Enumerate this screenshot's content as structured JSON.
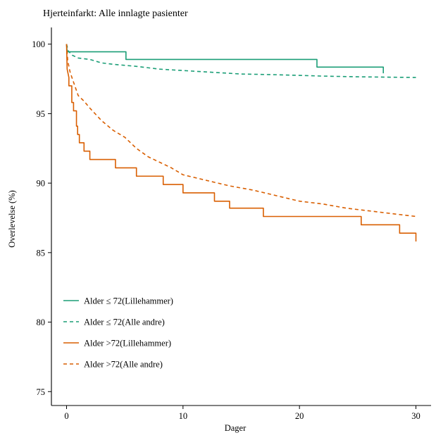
{
  "chart_data": {
    "type": "line",
    "title": "Hjerteinfarkt: Alle innlagte pasienter",
    "xlabel": "Dager",
    "ylabel": "Overlevelse (%)",
    "xlim": [
      -1.3,
      31.3
    ],
    "ylim": [
      74,
      101.2
    ],
    "x_ticks": [
      0,
      10,
      20,
      30
    ],
    "x_tick_labels": [
      "0",
      "10",
      "20",
      "30"
    ],
    "y_ticks": [
      75,
      80,
      85,
      90,
      95,
      100
    ],
    "y_tick_labels": [
      "75",
      "80",
      "85",
      "90",
      "95",
      "100"
    ],
    "grid": false,
    "legend_position": "bottom-left",
    "series": [
      {
        "name": "Alder ≤ 72(Lillehammer)",
        "color": "#1b9e77",
        "dash": "solid",
        "step": true,
        "points": [
          [
            0,
            100
          ],
          [
            0.05,
            99.45
          ],
          [
            5.1,
            99.45
          ],
          [
            5.1,
            98.9
          ],
          [
            21.5,
            98.9
          ],
          [
            21.5,
            98.35
          ],
          [
            27.2,
            98.35
          ],
          [
            27.2,
            97.9
          ]
        ]
      },
      {
        "name": "Alder ≤ 72(Alle andre)",
        "color": "#1b9e77",
        "dash": "dashed",
        "step": false,
        "points": [
          [
            0,
            100
          ],
          [
            0.15,
            99.5
          ],
          [
            0.5,
            99.2
          ],
          [
            1,
            99.0
          ],
          [
            2,
            98.9
          ],
          [
            3,
            98.65
          ],
          [
            4,
            98.55
          ],
          [
            6,
            98.4
          ],
          [
            8,
            98.2
          ],
          [
            10,
            98.1
          ],
          [
            12,
            98.0
          ],
          [
            15,
            97.85
          ],
          [
            18,
            97.8
          ],
          [
            22,
            97.7
          ],
          [
            25,
            97.65
          ],
          [
            28,
            97.62
          ],
          [
            30,
            97.6
          ]
        ]
      },
      {
        "name": "Alder >72(Lillehammer)",
        "color": "#d95f02",
        "dash": "solid",
        "step": true,
        "points": [
          [
            0,
            100
          ],
          [
            0.05,
            98.2
          ],
          [
            0.2,
            97.6
          ],
          [
            0.2,
            97.0
          ],
          [
            0.45,
            97.0
          ],
          [
            0.45,
            95.8
          ],
          [
            0.6,
            95.8
          ],
          [
            0.6,
            95.2
          ],
          [
            0.85,
            95.2
          ],
          [
            0.85,
            94.1
          ],
          [
            0.95,
            94.1
          ],
          [
            0.95,
            93.5
          ],
          [
            1.1,
            93.5
          ],
          [
            1.1,
            92.9
          ],
          [
            1.5,
            92.9
          ],
          [
            1.5,
            92.3
          ],
          [
            2.0,
            92.3
          ],
          [
            2.0,
            91.7
          ],
          [
            4.2,
            91.7
          ],
          [
            4.2,
            91.1
          ],
          [
            6.0,
            91.1
          ],
          [
            6.0,
            90.5
          ],
          [
            8.3,
            90.5
          ],
          [
            8.3,
            89.9
          ],
          [
            10.0,
            89.9
          ],
          [
            10.0,
            89.3
          ],
          [
            12.7,
            89.3
          ],
          [
            12.7,
            88.7
          ],
          [
            14.0,
            88.7
          ],
          [
            14.0,
            88.2
          ],
          [
            16.9,
            88.2
          ],
          [
            16.9,
            87.6
          ],
          [
            25.3,
            87.6
          ],
          [
            25.3,
            87.0
          ],
          [
            28.6,
            87.0
          ],
          [
            28.6,
            86.4
          ],
          [
            30,
            86.4
          ],
          [
            30,
            85.8
          ]
        ]
      },
      {
        "name": "Alder >72(Alle andre)",
        "color": "#d95f02",
        "dash": "dashed",
        "step": false,
        "points": [
          [
            0,
            100
          ],
          [
            0.1,
            98.8
          ],
          [
            0.3,
            98.0
          ],
          [
            0.5,
            97.5
          ],
          [
            1,
            96.3
          ],
          [
            1.5,
            95.9
          ],
          [
            2,
            95.4
          ],
          [
            3,
            94.5
          ],
          [
            4,
            93.8
          ],
          [
            5,
            93.3
          ],
          [
            6,
            92.5
          ],
          [
            7,
            91.9
          ],
          [
            8,
            91.5
          ],
          [
            9,
            91.1
          ],
          [
            10,
            90.6
          ],
          [
            12,
            90.2
          ],
          [
            14,
            89.8
          ],
          [
            16,
            89.5
          ],
          [
            18,
            89.1
          ],
          [
            20,
            88.7
          ],
          [
            22,
            88.5
          ],
          [
            24,
            88.2
          ],
          [
            26,
            88.0
          ],
          [
            28,
            87.8
          ],
          [
            30,
            87.6
          ]
        ]
      }
    ]
  }
}
